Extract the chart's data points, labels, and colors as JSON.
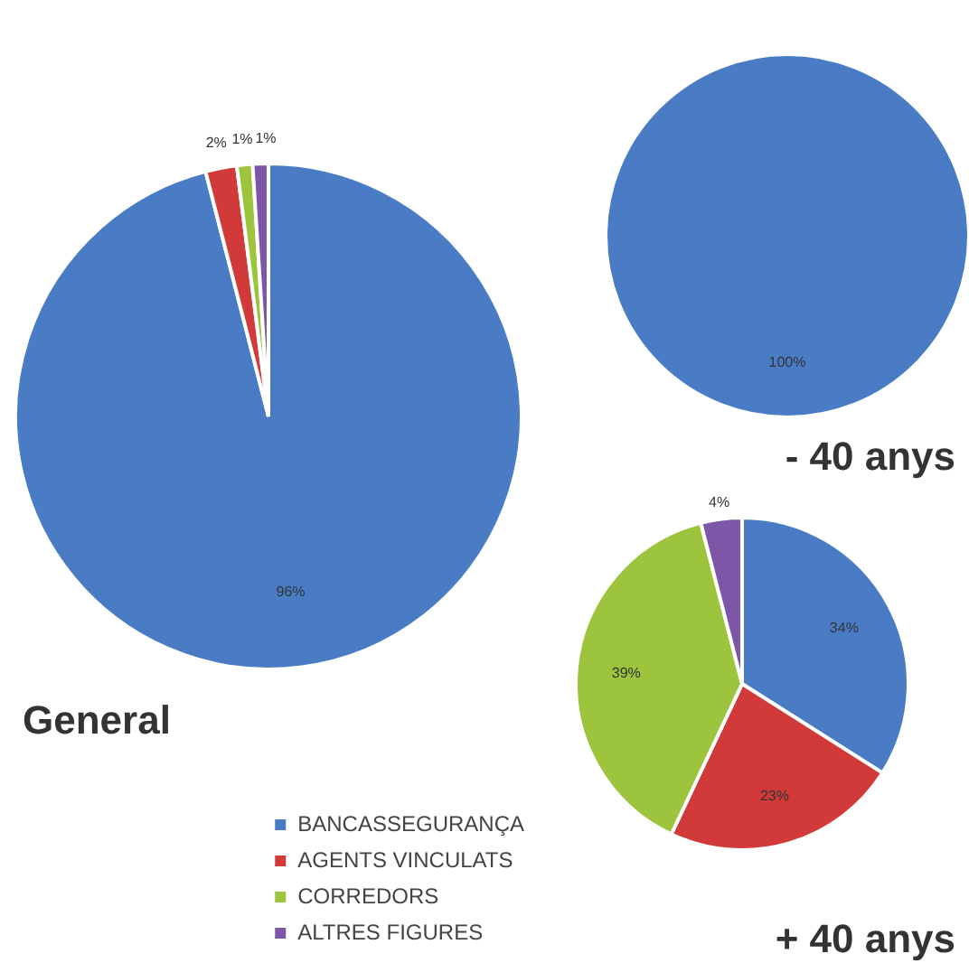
{
  "chart_data": [
    {
      "type": "pie",
      "title": "General",
      "categories": [
        "BANCASSEGURANÇA",
        "AGENTS VINCULATS",
        "CORREDORS",
        "ALTRES FIGURES"
      ],
      "values": [
        96,
        2,
        1,
        1
      ],
      "value_labels": [
        "96%",
        "2%",
        "1%",
        "1%"
      ],
      "colors": [
        "#4a7cc6",
        "#d23a3a",
        "#9cc43c",
        "#7e56a8"
      ],
      "legend": "bottom"
    },
    {
      "type": "pie",
      "title": "- 40 anys",
      "values": [
        100,
        0,
        0,
        0
      ],
      "value_labels": [
        "100%",
        null,
        null,
        null
      ],
      "colors": [
        "#4a7cc6",
        "#d23a3a",
        "#9cc43c",
        "#7e56a8"
      ]
    },
    {
      "type": "pie",
      "title": "+ 40 anys",
      "values": [
        34,
        23,
        39,
        4
      ],
      "value_labels": [
        "34%",
        "23%",
        "39%",
        "4%"
      ],
      "colors": [
        "#4a7cc6",
        "#d23a3a",
        "#9cc43c",
        "#7e56a8"
      ]
    }
  ]
}
